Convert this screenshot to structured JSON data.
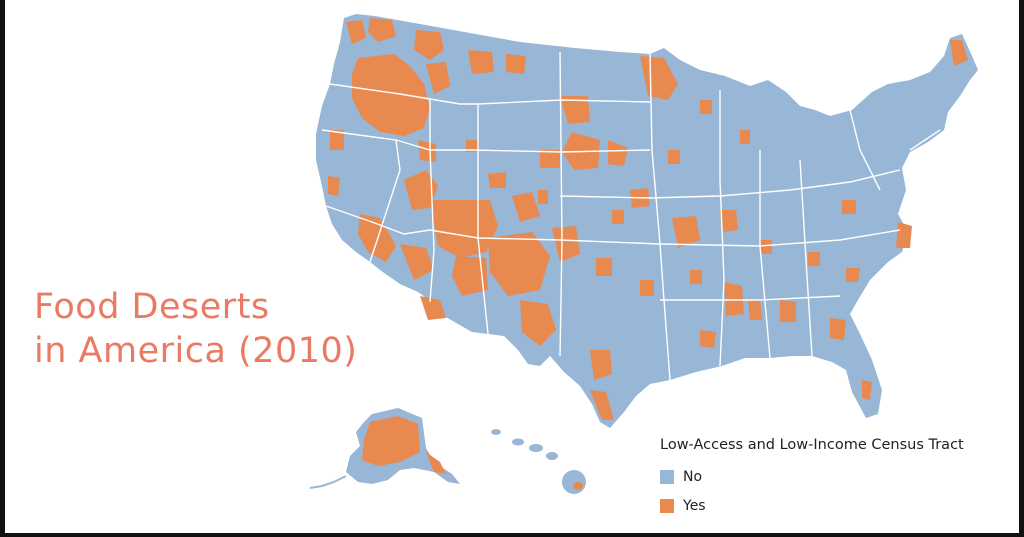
{
  "title": {
    "line1": "Food Deserts",
    "line2": "in America (2010)"
  },
  "colors": {
    "no": "#98b6d6",
    "yes": "#e8894f",
    "title": "#ea7a63",
    "borders": "#ffffff"
  },
  "legend": {
    "title": "Low-Access and Low-Income Census Tract",
    "items": [
      {
        "label": "No",
        "color": "#98b6d6"
      },
      {
        "label": "Yes",
        "color": "#e8894f"
      }
    ]
  }
}
